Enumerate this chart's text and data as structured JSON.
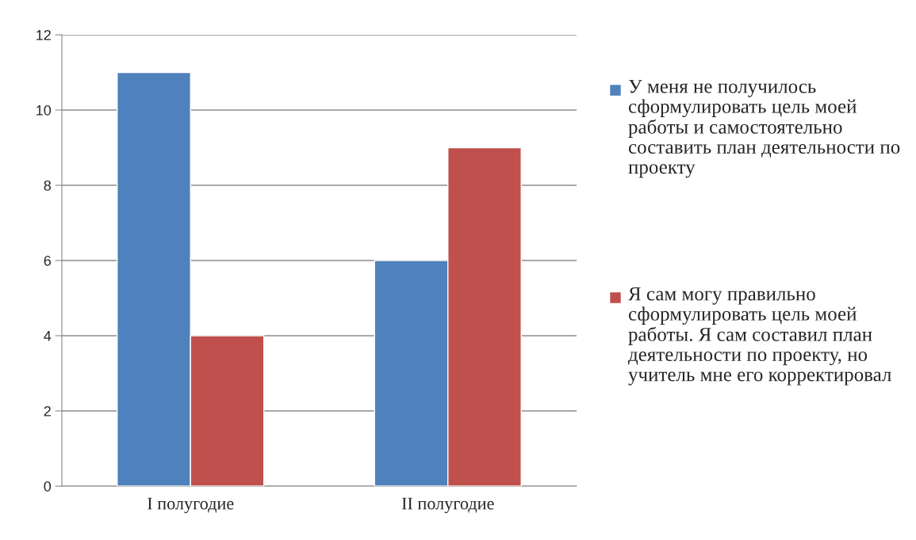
{
  "chart_data": {
    "type": "bar",
    "categories": [
      "I полугодие",
      "II полугодие"
    ],
    "series": [
      {
        "name": "У меня не получилось сформулировать цель моей работы и самостоятельно составить план деятельности по проекту",
        "color": "#4f81bd",
        "values": [
          11,
          6
        ]
      },
      {
        "name": "Я сам могу правильно сформулировать цель моей работы. Я сам составил план деятельности по проекту, но учитель мне его корректировал",
        "color": "#c0504d",
        "values": [
          4,
          9
        ]
      }
    ],
    "ylim": [
      0,
      12
    ],
    "yticks": [
      0,
      2,
      4,
      6,
      8,
      10,
      12
    ],
    "grid": "y",
    "legend": "right"
  }
}
